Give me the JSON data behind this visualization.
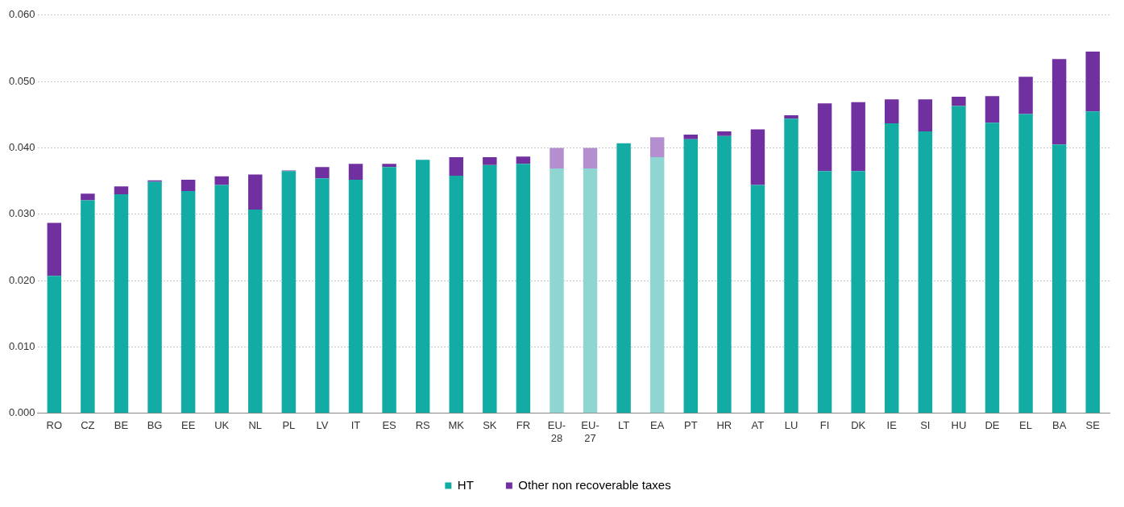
{
  "chart_data": {
    "type": "bar",
    "stacked": true,
    "categories": [
      "RO",
      "CZ",
      "BE",
      "BG",
      "EE",
      "UK",
      "NL",
      "PL",
      "LV",
      "IT",
      "ES",
      "RS",
      "MK",
      "SK",
      "FR",
      "EU-28",
      "EU-27",
      "LT",
      "EA",
      "PT",
      "HR",
      "AT",
      "LU",
      "FI",
      "DK",
      "IE",
      "SI",
      "HU",
      "DE",
      "EL",
      "BA",
      "SE"
    ],
    "series": [
      {
        "name": "HT",
        "color": "#12aca4",
        "colors": [
          "#12aca4",
          "#12aca4",
          "#12aca4",
          "#12aca4",
          "#12aca4",
          "#12aca4",
          "#12aca4",
          "#12aca4",
          "#12aca4",
          "#12aca4",
          "#12aca4",
          "#12aca4",
          "#12aca4",
          "#12aca4",
          "#12aca4",
          "#8fd6d2",
          "#8fd6d2",
          "#12aca4",
          "#8fd6d2",
          "#12aca4",
          "#12aca4",
          "#12aca4",
          "#12aca4",
          "#12aca4",
          "#12aca4",
          "#12aca4",
          "#12aca4",
          "#12aca4",
          "#12aca4",
          "#12aca4",
          "#12aca4",
          "#12aca4"
        ],
        "values": [
          0.0207,
          0.0321,
          0.033,
          0.0349,
          0.0335,
          0.0344,
          0.0307,
          0.0365,
          0.0354,
          0.0352,
          0.0371,
          0.0382,
          0.0358,
          0.0374,
          0.0376,
          0.0369,
          0.0369,
          0.0407,
          0.0386,
          0.0413,
          0.0418,
          0.0344,
          0.0444,
          0.0365,
          0.0365,
          0.0437,
          0.0425,
          0.0463,
          0.0438,
          0.0451,
          0.0405,
          0.0455
        ]
      },
      {
        "name": "Other non recoverable taxes",
        "color": "#7030a0",
        "colors": [
          "#7030a0",
          "#7030a0",
          "#7030a0",
          "#7030a0",
          "#7030a0",
          "#7030a0",
          "#7030a0",
          "#7030a0",
          "#7030a0",
          "#7030a0",
          "#7030a0",
          "#7030a0",
          "#7030a0",
          "#7030a0",
          "#7030a0",
          "#b48fcf",
          "#b48fcf",
          "#7030a0",
          "#b48fcf",
          "#7030a0",
          "#7030a0",
          "#7030a0",
          "#7030a0",
          "#7030a0",
          "#7030a0",
          "#7030a0",
          "#7030a0",
          "#7030a0",
          "#7030a0",
          "#7030a0",
          "#7030a0",
          "#7030a0"
        ],
        "values": [
          0.008,
          0.001,
          0.0012,
          0.0002,
          0.0017,
          0.0013,
          0.0053,
          0.0001,
          0.0017,
          0.0024,
          0.0005,
          0,
          0.0028,
          0.0012,
          0.0011,
          0.0031,
          0.0031,
          0,
          0.003,
          0.0007,
          0.0007,
          0.0084,
          0.0005,
          0.0102,
          0.0104,
          0.0036,
          0.0048,
          0.0014,
          0.004,
          0.0056,
          0.0129,
          0.009
        ]
      }
    ],
    "ylim": [
      0,
      0.06
    ],
    "yticks": [
      {
        "value": 0,
        "label": "0.000"
      },
      {
        "value": 0.01,
        "label": "0.010"
      },
      {
        "value": 0.02,
        "label": "0.020"
      },
      {
        "value": 0.03,
        "label": "0.030"
      },
      {
        "value": 0.04,
        "label": "0.040"
      },
      {
        "value": 0.05,
        "label": "0.050"
      },
      {
        "value": 0.06,
        "label": "0.060"
      }
    ],
    "grid": "y",
    "legend": "bottom"
  }
}
